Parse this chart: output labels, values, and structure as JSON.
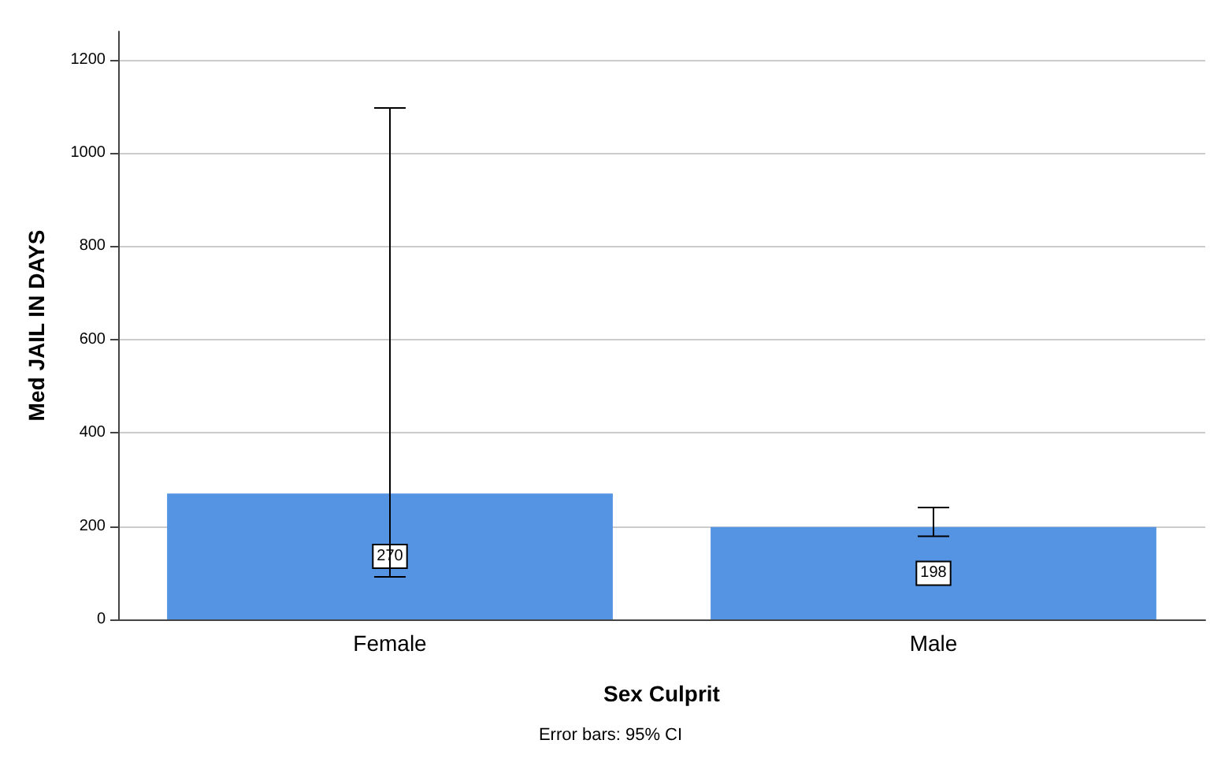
{
  "chart_data": {
    "type": "bar",
    "categories": [
      "Female",
      "Male"
    ],
    "values": [
      270,
      198
    ],
    "errors": [
      [
        91,
        1096
      ],
      [
        178,
        240
      ]
    ],
    "color": "#5594e3",
    "xlabel": "Sex Culprit",
    "ylabel": "Med JAIL IN DAYS",
    "ylim": [
      0,
      1260
    ],
    "yticks": [
      0,
      200,
      400,
      600,
      800,
      1000,
      1200
    ],
    "grid": "y",
    "data_labels": true,
    "annotations": [
      "Error bars: 95% CI"
    ]
  }
}
